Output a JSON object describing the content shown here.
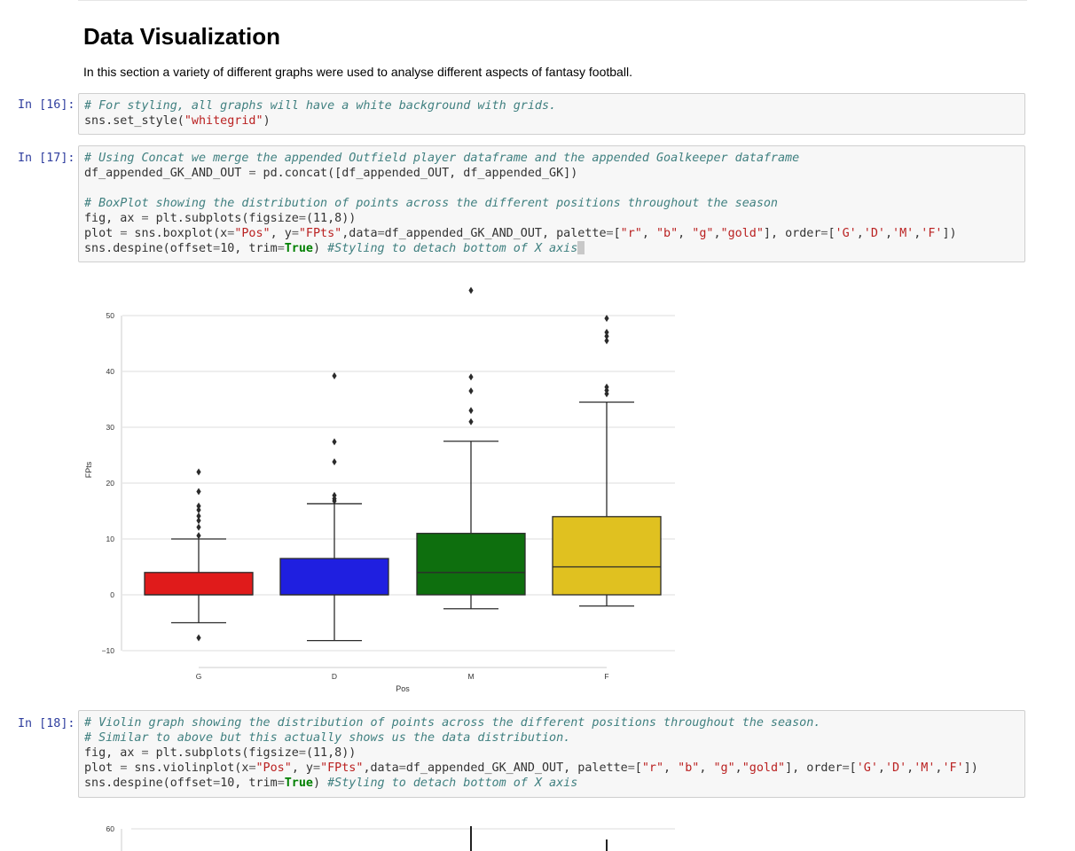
{
  "page": {
    "title": "Data Visualization",
    "intro": "In this section a variety of different graphs were used to analyse different aspects of fantasy football."
  },
  "cells": [
    {
      "prompt": "In [16]:",
      "lines": [
        [
          {
            "t": "cm",
            "v": "# For styling, all graphs will have a white background with grids."
          }
        ],
        [
          {
            "t": "",
            "v": "sns.set_style("
          },
          {
            "t": "st",
            "v": "\"whitegrid\""
          },
          {
            "t": "",
            "v": ")"
          }
        ]
      ]
    },
    {
      "prompt": "In [17]:",
      "lines": [
        [
          {
            "t": "cm",
            "v": "# Using Concat we merge the appended Outfield player dataframe and the appended Goalkeeper dataframe"
          }
        ],
        [
          {
            "t": "",
            "v": "df_appended_GK_AND_OUT "
          },
          {
            "t": "op",
            "v": "="
          },
          {
            "t": "",
            "v": " pd.concat([df_appended_OUT, df_appended_GK])"
          }
        ],
        [
          {
            "t": "",
            "v": ""
          }
        ],
        [
          {
            "t": "cm",
            "v": "# BoxPlot showing the distribution of points across the different positions throughout the season"
          }
        ],
        [
          {
            "t": "",
            "v": "fig, ax "
          },
          {
            "t": "op",
            "v": "="
          },
          {
            "t": "",
            "v": " plt.subplots(figsize"
          },
          {
            "t": "op",
            "v": "="
          },
          {
            "t": "",
            "v": "(11,8))"
          }
        ],
        [
          {
            "t": "",
            "v": "plot "
          },
          {
            "t": "op",
            "v": "="
          },
          {
            "t": "",
            "v": " sns.boxplot(x"
          },
          {
            "t": "op",
            "v": "="
          },
          {
            "t": "st",
            "v": "\"Pos\""
          },
          {
            "t": "",
            "v": ", y"
          },
          {
            "t": "op",
            "v": "="
          },
          {
            "t": "st",
            "v": "\"FPts\""
          },
          {
            "t": "",
            "v": ",data"
          },
          {
            "t": "op",
            "v": "="
          },
          {
            "t": "",
            "v": "df_appended_GK_AND_OUT, palette"
          },
          {
            "t": "op",
            "v": "="
          },
          {
            "t": "",
            "v": "["
          },
          {
            "t": "st",
            "v": "\"r\""
          },
          {
            "t": "",
            "v": ", "
          },
          {
            "t": "st",
            "v": "\"b\""
          },
          {
            "t": "",
            "v": ", "
          },
          {
            "t": "st",
            "v": "\"g\""
          },
          {
            "t": "",
            "v": ","
          },
          {
            "t": "st",
            "v": "\"gold\""
          },
          {
            "t": "",
            "v": "], order"
          },
          {
            "t": "op",
            "v": "="
          },
          {
            "t": "",
            "v": "["
          },
          {
            "t": "st",
            "v": "'G'"
          },
          {
            "t": "",
            "v": ","
          },
          {
            "t": "st",
            "v": "'D'"
          },
          {
            "t": "",
            "v": ","
          },
          {
            "t": "st",
            "v": "'M'"
          },
          {
            "t": "",
            "v": ","
          },
          {
            "t": "st",
            "v": "'F'"
          },
          {
            "t": "",
            "v": "])"
          }
        ],
        [
          {
            "t": "",
            "v": "sns.despine(offset"
          },
          {
            "t": "op",
            "v": "="
          },
          {
            "t": "",
            "v": "10, trim"
          },
          {
            "t": "op",
            "v": "="
          },
          {
            "t": "kw",
            "v": "True"
          },
          {
            "t": "",
            "v": ") "
          },
          {
            "t": "cm",
            "v": "#Styling to detach bottom of X axis"
          },
          {
            "t": "cursor",
            "v": ""
          }
        ]
      ]
    },
    {
      "prompt": "In [18]:",
      "lines": [
        [
          {
            "t": "cm",
            "v": "# Violin graph showing the distribution of points across the different positions throughout the season."
          }
        ],
        [
          {
            "t": "cm",
            "v": "# Similar to above but this actually shows us the data distribution."
          }
        ],
        [
          {
            "t": "",
            "v": "fig, ax "
          },
          {
            "t": "op",
            "v": "="
          },
          {
            "t": "",
            "v": " plt.subplots(figsize"
          },
          {
            "t": "op",
            "v": "="
          },
          {
            "t": "",
            "v": "(11,8))"
          }
        ],
        [
          {
            "t": "",
            "v": "plot "
          },
          {
            "t": "op",
            "v": "="
          },
          {
            "t": "",
            "v": " sns.violinplot(x"
          },
          {
            "t": "op",
            "v": "="
          },
          {
            "t": "st",
            "v": "\"Pos\""
          },
          {
            "t": "",
            "v": ", y"
          },
          {
            "t": "op",
            "v": "="
          },
          {
            "t": "st",
            "v": "\"FPts\""
          },
          {
            "t": "",
            "v": ",data"
          },
          {
            "t": "op",
            "v": "="
          },
          {
            "t": "",
            "v": "df_appended_GK_AND_OUT, palette"
          },
          {
            "t": "op",
            "v": "="
          },
          {
            "t": "",
            "v": "["
          },
          {
            "t": "st",
            "v": "\"r\""
          },
          {
            "t": "",
            "v": ", "
          },
          {
            "t": "st",
            "v": "\"b\""
          },
          {
            "t": "",
            "v": ", "
          },
          {
            "t": "st",
            "v": "\"g\""
          },
          {
            "t": "",
            "v": ","
          },
          {
            "t": "st",
            "v": "\"gold\""
          },
          {
            "t": "",
            "v": "], order"
          },
          {
            "t": "op",
            "v": "="
          },
          {
            "t": "",
            "v": "["
          },
          {
            "t": "st",
            "v": "'G'"
          },
          {
            "t": "",
            "v": ","
          },
          {
            "t": "st",
            "v": "'D'"
          },
          {
            "t": "",
            "v": ","
          },
          {
            "t": "st",
            "v": "'M'"
          },
          {
            "t": "",
            "v": ","
          },
          {
            "t": "st",
            "v": "'F'"
          },
          {
            "t": "",
            "v": "])"
          }
        ],
        [
          {
            "t": "",
            "v": "sns.despine(offset"
          },
          {
            "t": "op",
            "v": "="
          },
          {
            "t": "",
            "v": "10, trim"
          },
          {
            "t": "op",
            "v": "="
          },
          {
            "t": "kw",
            "v": "True"
          },
          {
            "t": "",
            "v": ") "
          },
          {
            "t": "cm",
            "v": "#Styling to detach bottom of X axis"
          }
        ]
      ]
    }
  ],
  "chart_data": [
    {
      "type": "box",
      "categories": [
        "G",
        "D",
        "M",
        "F"
      ],
      "colors": [
        "#e01b1b",
        "#1f1fe0",
        "#0e6f0e",
        "#e0c120"
      ],
      "xlabel": "Pos",
      "ylabel": "FPts",
      "ylim": [
        -10,
        50
      ],
      "yticks": [
        -10,
        0,
        10,
        20,
        30,
        40,
        50
      ],
      "grid": true,
      "boxes": [
        {
          "q1": 0,
          "median": 0,
          "q3": 4,
          "whisker_low": -5,
          "whisker_high": 10,
          "outliers": [
            -7.7,
            10.6,
            12.1,
            13.3,
            14.1,
            15.2,
            15.9,
            18.5,
            22
          ]
        },
        {
          "q1": 0,
          "median": 0,
          "q3": 6.5,
          "whisker_low": -8.2,
          "whisker_high": 16.3,
          "outliers": [
            16.8,
            17.2,
            17.8,
            23.8,
            27.4,
            39.2
          ]
        },
        {
          "q1": 0,
          "median": 4,
          "q3": 11,
          "whisker_low": -2.5,
          "whisker_high": 27.5,
          "outliers": [
            31,
            33,
            36.5,
            39,
            54.5
          ]
        },
        {
          "q1": 0,
          "median": 5,
          "q3": 14,
          "whisker_low": -2,
          "whisker_high": 34.5,
          "outliers": [
            36,
            36.6,
            37.2,
            45.5,
            46.3,
            47,
            49.5
          ]
        }
      ]
    },
    {
      "type": "violin",
      "yticks": [
        60
      ],
      "note": "partially visible"
    }
  ]
}
